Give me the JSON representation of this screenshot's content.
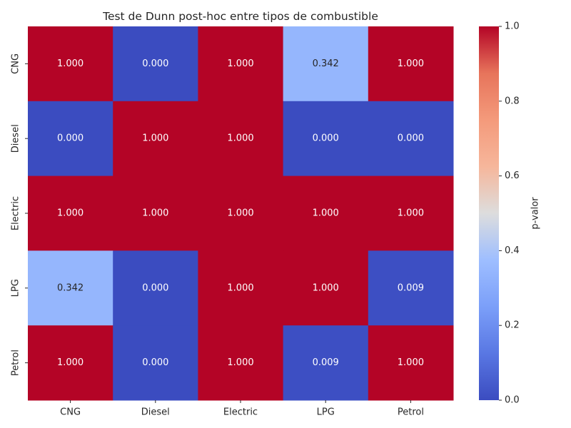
{
  "chart_data": {
    "type": "heatmap",
    "title": "Test de Dunn post-hoc entre tipos de combustible",
    "row_labels": [
      "CNG",
      "Diesel",
      "Electric",
      "LPG",
      "Petrol"
    ],
    "col_labels": [
      "CNG",
      "Diesel",
      "Electric",
      "LPG",
      "Petrol"
    ],
    "values": [
      [
        1.0,
        0.0,
        1.0,
        0.342,
        1.0
      ],
      [
        0.0,
        1.0,
        1.0,
        0.0,
        0.0
      ],
      [
        1.0,
        1.0,
        1.0,
        1.0,
        1.0
      ],
      [
        0.342,
        0.0,
        1.0,
        1.0,
        0.009
      ],
      [
        1.0,
        0.0,
        1.0,
        0.009,
        1.0
      ]
    ],
    "annotation_format": "0.000",
    "colormap": "coolwarm",
    "colorbar": {
      "label": "p-valor",
      "range": [
        0.0,
        1.0
      ],
      "ticks": [
        "0.0",
        "0.2",
        "0.4",
        "0.6",
        "0.8",
        "1.0"
      ]
    },
    "grid": false
  }
}
